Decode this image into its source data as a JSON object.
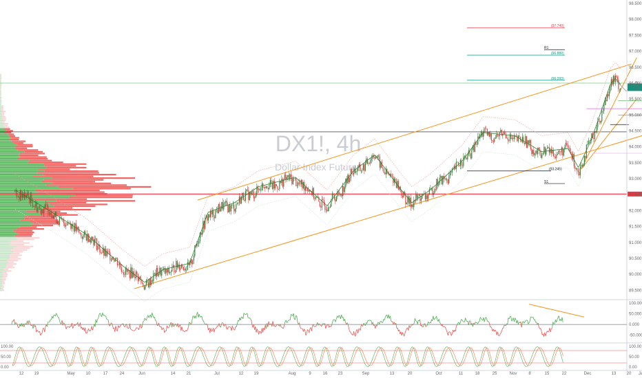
{
  "chart_data": {
    "type": "candlestick",
    "watermark": {
      "symbol": "DX1!, 4h",
      "description": "Dollar Index Futures"
    },
    "y_axis": {
      "range": [
        89.25,
        98.5
      ],
      "ticks": [
        "98.000",
        "97.500",
        "97.000",
        "96.500",
        "96.000",
        "95.500",
        "95.000",
        "94.500",
        "94.000",
        "93.500",
        "93.000",
        "92.500",
        "92.000",
        "91.500",
        "91.000",
        "90.500",
        "90.000",
        "89.500"
      ],
      "top_label": "98.500"
    },
    "x_axis": {
      "labels": [
        "12",
        "19",
        "May",
        "10",
        "17",
        "24",
        "Jun",
        "14",
        "21",
        "Jul",
        "12",
        "19",
        "Aug",
        "9",
        "16",
        "23",
        "Sep",
        "13",
        "20",
        "Oct",
        "11",
        "18",
        "25",
        "Nov",
        "8",
        "15",
        "22",
        "Dec",
        "13",
        "20",
        "Ja"
      ]
    },
    "price_badges": [
      {
        "value": "95.915",
        "sub": "02:51:17",
        "color": "#089981"
      },
      {
        "value": "92.520",
        "sub": "",
        "color": "#f23645"
      }
    ],
    "levels": [
      {
        "label": "(97.740)",
        "value": 97.74,
        "color": "#f23645"
      },
      {
        "label": "R1",
        "value": 97.05,
        "color": "#131722"
      },
      {
        "label": "(96.880)",
        "value": 96.88,
        "color": "#089981"
      },
      {
        "label": "(96.093)",
        "value": 96.09,
        "color": "#089981"
      },
      {
        "label": "(93.245)",
        "value": 93.245,
        "color": "#131722"
      },
      {
        "label": "S1",
        "value": 92.85,
        "color": "#131722"
      }
    ],
    "horizontal_lines": [
      {
        "value": 94.47,
        "color": "#131722"
      },
      {
        "value": 92.52,
        "color": "#f23645"
      },
      {
        "value": 96.0,
        "color": "#81c784"
      }
    ],
    "series": [
      {
        "name": "DX1!",
        "key_points": [
          {
            "x": "Apr 6",
            "y": 92.6
          },
          {
            "x": "Apr 20",
            "y": 91.9
          },
          {
            "x": "May 3",
            "y": 91.2
          },
          {
            "x": "May 17",
            "y": 90.2
          },
          {
            "x": "May 25",
            "y": 89.7
          },
          {
            "x": "Jun 1",
            "y": 90.1
          },
          {
            "x": "Jun 11",
            "y": 90.3
          },
          {
            "x": "Jun 18",
            "y": 91.9
          },
          {
            "x": "Jun 28",
            "y": 92.2
          },
          {
            "x": "Jul 7",
            "y": 92.7
          },
          {
            "x": "Jul 21",
            "y": 93.0
          },
          {
            "x": "Aug 2",
            "y": 92.1
          },
          {
            "x": "Aug 12",
            "y": 93.2
          },
          {
            "x": "Aug 20",
            "y": 93.7
          },
          {
            "x": "Aug 30",
            "y": 92.6
          },
          {
            "x": "Sep 3",
            "y": 92.2
          },
          {
            "x": "Sep 10",
            "y": 92.6
          },
          {
            "x": "Sep 22",
            "y": 93.5
          },
          {
            "x": "Sep 30",
            "y": 94.4
          },
          {
            "x": "Oct 12",
            "y": 94.3
          },
          {
            "x": "Oct 22",
            "y": 93.8
          },
          {
            "x": "Nov 1",
            "y": 93.9
          },
          {
            "x": "Nov 5",
            "y": 93.3
          },
          {
            "x": "Nov 10",
            "y": 94.2
          },
          {
            "x": "Nov 17",
            "y": 95.9
          },
          {
            "x": "Nov 19",
            "y": 96.1
          },
          {
            "x": "Nov 21",
            "y": 95.9
          }
        ]
      }
    ],
    "rsi_panel": {
      "ticks": [
        "100.000",
        "50.000",
        "0.000",
        "-50.000"
      ]
    },
    "stoch_panel": {
      "ticks": [
        "100.00",
        "50.00",
        "0.00"
      ],
      "left_ticks": [
        "100.00",
        "50.00",
        "0.00"
      ]
    }
  }
}
